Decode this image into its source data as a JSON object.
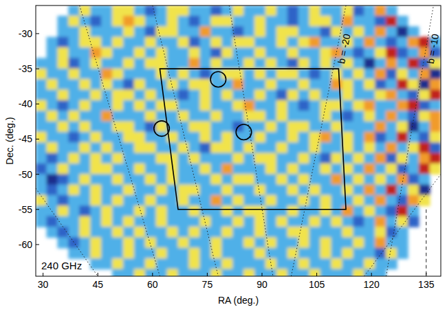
{
  "chart_data": {
    "type": "heatmap",
    "x_label": "RA (deg.)",
    "y_label": "Dec. (deg.)",
    "annotation": "240 GHz",
    "xlim": [
      28,
      139
    ],
    "ylim": [
      -64.5,
      -26
    ],
    "xticks": [
      30,
      45,
      60,
      75,
      90,
      105,
      120,
      135
    ],
    "yticks": [
      -30,
      -35,
      -40,
      -45,
      -50,
      -55,
      -60
    ],
    "color_range": [
      -3,
      3
    ],
    "cell_ra": [
      29.5,
      32.5,
      35.5,
      38.5,
      41.5,
      44.5,
      47.5,
      50.5,
      53.5,
      56.5,
      59.5,
      62.5,
      65.5,
      68.5,
      71.5,
      74.5,
      77.5,
      80.5,
      83.5,
      86.5,
      89.5,
      92.5,
      95.5,
      98.5,
      101.5,
      104.5,
      107.5,
      110.5,
      113.5,
      116.5,
      119.5,
      122.5,
      125.5,
      128.5,
      131.5,
      134.5,
      137.5
    ],
    "cell_dec": [
      -26.75,
      -28.25,
      -29.75,
      -31.25,
      -32.75,
      -34.25,
      -35.75,
      -37.25,
      -38.75,
      -40.25,
      -41.75,
      -43.25,
      -44.75,
      -46.25,
      -47.75,
      -49.25,
      -50.75,
      -52.25,
      -53.75,
      -55.25,
      -56.75,
      -58.25,
      -59.75,
      -61.25,
      -62.75,
      -64.25
    ],
    "cells": [
      [
        null,
        null,
        null,
        -1,
        1,
        -1,
        -1,
        1,
        1,
        -1,
        -2,
        -1,
        1,
        1,
        -1,
        -1,
        -2,
        -1,
        1,
        -1,
        -1,
        1,
        -1,
        -2,
        -1,
        1,
        -1,
        -1,
        1,
        -2,
        -1,
        2,
        -1,
        null,
        null,
        null,
        null
      ],
      [
        null,
        null,
        -1,
        1,
        -1,
        -2,
        -1,
        1,
        2,
        1,
        -1,
        -1,
        1,
        -1,
        -2,
        -1,
        1,
        1,
        -1,
        -1,
        1,
        -1,
        -1,
        -2,
        -1,
        1,
        1,
        -1,
        2,
        -1,
        -1,
        -2,
        3,
        -1,
        null,
        null,
        null
      ],
      [
        null,
        null,
        -1,
        -1,
        1,
        -1,
        -1,
        -1,
        1,
        -1,
        -2,
        1,
        1,
        -1,
        -1,
        2,
        -1,
        -1,
        -2,
        -1,
        1,
        -1,
        1,
        1,
        -1,
        -1,
        -2,
        1,
        -1,
        1,
        -1,
        2,
        -1,
        -3,
        -1,
        null,
        null
      ],
      [
        null,
        -1,
        -2,
        -1,
        1,
        1,
        -1,
        1,
        -1,
        -1,
        1,
        -1,
        -1,
        1,
        -2,
        -1,
        1,
        -1,
        1,
        1,
        -1,
        -1,
        1,
        -1,
        1,
        2,
        -1,
        -1,
        1,
        -1,
        2,
        -1,
        -2,
        -1,
        2,
        3,
        -1
      ],
      [
        null,
        -1,
        1,
        -1,
        -1,
        2,
        1,
        -1,
        -1,
        1,
        -1,
        1,
        -1,
        -1,
        1,
        -1,
        -2,
        1,
        -1,
        -1,
        1,
        -1,
        -1,
        1,
        -1,
        -1,
        1,
        2,
        -1,
        -2,
        -1,
        1,
        3,
        -2,
        -1,
        2,
        -2
      ],
      [
        -1,
        -1,
        1,
        -2,
        -1,
        1,
        -1,
        -1,
        1,
        -1,
        1,
        1,
        -1,
        -1,
        2,
        -1,
        1,
        -1,
        -1,
        1,
        -1,
        1,
        -1,
        -2,
        1,
        -1,
        1,
        -1,
        1,
        -1,
        -3,
        -1,
        2,
        -1,
        3,
        -2,
        1
      ],
      [
        1,
        -1,
        -1,
        1,
        -1,
        -1,
        2,
        1,
        -1,
        -1,
        -1,
        1,
        -1,
        1,
        -1,
        -2,
        -1,
        1,
        1,
        -1,
        1,
        -1,
        1,
        1,
        -1,
        -2,
        -1,
        1,
        -1,
        1,
        -1,
        2,
        -2,
        1,
        -1,
        2,
        -3
      ],
      [
        -1,
        1,
        -1,
        -1,
        1,
        -1,
        1,
        -1,
        -2,
        1,
        -1,
        -1,
        1,
        -1,
        1,
        1,
        -1,
        -1,
        2,
        -1,
        -1,
        1,
        -1,
        -1,
        1,
        -1,
        -1,
        2,
        1,
        -1,
        1,
        -2,
        -1,
        3,
        1,
        -3,
        2
      ],
      [
        -1,
        -1,
        1,
        -1,
        -1,
        1,
        -1,
        1,
        1,
        -1,
        1,
        -1,
        -1,
        -2,
        -1,
        1,
        -1,
        1,
        -1,
        -1,
        1,
        -1,
        -2,
        1,
        -1,
        1,
        -1,
        -1,
        1,
        -1,
        -1,
        1,
        2,
        -1,
        -2,
        1,
        3
      ],
      [
        1,
        -1,
        -2,
        -1,
        1,
        -1,
        -1,
        1,
        -1,
        1,
        -1,
        1,
        1,
        -1,
        -1,
        1,
        -1,
        -1,
        1,
        2,
        -1,
        -1,
        1,
        -1,
        -2,
        -1,
        1,
        1,
        -1,
        1,
        2,
        -1,
        -1,
        2,
        3,
        -2,
        -1
      ],
      [
        -1,
        1,
        -1,
        1,
        -1,
        -1,
        2,
        -1,
        -1,
        -1,
        1,
        -1,
        -1,
        1,
        -1,
        -1,
        1,
        -1,
        -1,
        1,
        1,
        -1,
        1,
        -1,
        -1,
        -1,
        1,
        -1,
        -2,
        -1,
        1,
        -1,
        2,
        -1,
        -2,
        1,
        2
      ],
      [
        -1,
        -1,
        1,
        -1,
        1,
        -1,
        -1,
        1,
        1,
        -1,
        -2,
        1,
        -1,
        -1,
        1,
        1,
        -1,
        -1,
        -2,
        -1,
        -1,
        1,
        -1,
        1,
        1,
        -1,
        -1,
        1,
        -1,
        -1,
        -1,
        2,
        -1,
        1,
        -3,
        -1,
        2
      ],
      [
        1,
        -1,
        -1,
        -2,
        -1,
        1,
        -1,
        -1,
        1,
        1,
        -1,
        -1,
        1,
        -1,
        -1,
        1,
        -1,
        1,
        -1,
        -1,
        1,
        -1,
        -1,
        1,
        -1,
        1,
        2,
        -1,
        1,
        -1,
        2,
        -2,
        -1,
        3,
        -1,
        -2,
        1
      ],
      [
        -1,
        1,
        -1,
        -1,
        1,
        -1,
        1,
        -1,
        -1,
        1,
        1,
        -1,
        -1,
        1,
        -1,
        -2,
        1,
        1,
        -1,
        1,
        -1,
        -1,
        1,
        -1,
        -1,
        1,
        -1,
        -1,
        1,
        -1,
        1,
        -1,
        2,
        -1,
        1,
        3,
        -2
      ],
      [
        -1,
        -2,
        -1,
        1,
        -1,
        1,
        -1,
        1,
        -1,
        -1,
        -1,
        1,
        1,
        -1,
        1,
        -1,
        -1,
        -1,
        1,
        -1,
        1,
        1,
        -1,
        -1,
        1,
        -1,
        -2,
        1,
        -1,
        1,
        -1,
        2,
        -2,
        1,
        -1,
        2,
        3
      ],
      [
        -2,
        -1,
        1,
        -1,
        -1,
        1,
        1,
        -1,
        -1,
        1,
        -1,
        -1,
        1,
        -1,
        -1,
        1,
        -1,
        2,
        -1,
        -1,
        -1,
        1,
        -1,
        1,
        -1,
        -1,
        1,
        -1,
        1,
        -1,
        2,
        -1,
        1,
        -2,
        -1,
        3,
        1
      ],
      [
        -1,
        -3,
        -2,
        -1,
        1,
        -1,
        -1,
        1,
        -1,
        -1,
        1,
        -1,
        1,
        -1,
        -1,
        -1,
        1,
        -1,
        1,
        1,
        -1,
        -1,
        1,
        -1,
        1,
        -1,
        -1,
        2,
        -1,
        1,
        -1,
        1,
        -1,
        2,
        -2,
        -1,
        null
      ],
      [
        -1,
        -2,
        -1,
        1,
        -1,
        1,
        -1,
        -1,
        1,
        -1,
        -1,
        1,
        -1,
        1,
        1,
        -1,
        -1,
        1,
        -1,
        -1,
        1,
        -1,
        -1,
        1,
        -1,
        1,
        -1,
        -1,
        1,
        -1,
        2,
        -1,
        3,
        -1,
        1,
        -3,
        null
      ],
      [
        1,
        -1,
        -2,
        -1,
        -1,
        1,
        -1,
        1,
        -1,
        -1,
        1,
        -1,
        -1,
        1,
        -1,
        -1,
        2,
        -1,
        1,
        -1,
        -1,
        1,
        -1,
        -1,
        1,
        -1,
        1,
        -1,
        -1,
        1,
        -1,
        2,
        -1,
        -2,
        2,
        1,
        null
      ],
      [
        -1,
        -1,
        1,
        -1,
        -2,
        -1,
        1,
        -1,
        -1,
        1,
        -1,
        1,
        -1,
        -1,
        1,
        -1,
        -1,
        1,
        -1,
        1,
        1,
        -1,
        -1,
        1,
        -1,
        -1,
        1,
        -1,
        2,
        -1,
        1,
        -1,
        -2,
        3,
        -1,
        null,
        null
      ],
      [
        -1,
        -2,
        -1,
        -1,
        1,
        -1,
        1,
        -1,
        1,
        -1,
        -1,
        1,
        -1,
        -1,
        -1,
        1,
        -1,
        -1,
        1,
        -1,
        1,
        -1,
        1,
        -1,
        -1,
        1,
        -1,
        1,
        -1,
        -2,
        -1,
        2,
        -1,
        1,
        -2,
        null,
        null
      ],
      [
        null,
        -1,
        -2,
        -1,
        1,
        -1,
        -1,
        1,
        -1,
        1,
        -1,
        -1,
        1,
        -1,
        1,
        -1,
        -1,
        1,
        -1,
        -1,
        1,
        -1,
        -1,
        1,
        1,
        -1,
        -1,
        -1,
        1,
        -1,
        -1,
        1,
        -2,
        -1,
        null,
        null,
        null
      ],
      [
        null,
        null,
        -1,
        -2,
        -1,
        1,
        -1,
        -1,
        1,
        -1,
        1,
        -1,
        -1,
        1,
        -1,
        -1,
        1,
        -1,
        -1,
        1,
        -1,
        1,
        -1,
        -1,
        1,
        -1,
        1,
        -1,
        -1,
        1,
        -1,
        2,
        -1,
        -1,
        null,
        null,
        null
      ],
      [
        null,
        null,
        null,
        -1,
        -1,
        1,
        -1,
        -1,
        1,
        -1,
        -1,
        1,
        -1,
        -1,
        1,
        -1,
        1,
        -1,
        -1,
        -1,
        1,
        -1,
        -1,
        1,
        -1,
        -1,
        1,
        -1,
        1,
        -1,
        -1,
        -2,
        1,
        -1,
        null,
        null,
        null
      ],
      [
        null,
        null,
        null,
        null,
        null,
        -1,
        -1,
        1,
        -1,
        -1,
        1,
        -1,
        -1,
        -1,
        1,
        -1,
        -1,
        1,
        -1,
        -1,
        -1,
        1,
        -1,
        -1,
        1,
        -1,
        -1,
        1,
        -1,
        -1,
        1,
        -1,
        -1,
        null,
        null,
        null,
        null
      ],
      [
        null,
        null,
        null,
        null,
        null,
        null,
        null,
        -1,
        -1,
        1,
        -1,
        -1,
        1,
        -1,
        -1,
        -1,
        1,
        -1,
        -1,
        1,
        -1,
        -1,
        1,
        -1,
        -1,
        1,
        -1,
        -1,
        -1,
        1,
        -1,
        -1,
        null,
        null,
        null,
        null,
        null
      ]
    ],
    "field": {
      "ra": [
        62,
        111,
        113,
        67
      ],
      "dec": [
        -35,
        -35,
        -55,
        -55
      ]
    },
    "circles": {
      "ra": [
        78,
        62.5,
        85
      ],
      "dec": [
        -36.5,
        -43.5,
        -44
      ],
      "radius": 1.1
    },
    "overlay_lines": [
      {
        "ra": [
          40,
          62
        ],
        "dec": [
          -26,
          -64.5
        ],
        "line_style": "dotted"
      },
      {
        "ra": [
          60,
          78
        ],
        "dec": [
          -26,
          -64.5
        ],
        "line_style": "dotted"
      },
      {
        "ra": [
          81,
          93
        ],
        "dec": [
          -26,
          -64.5
        ],
        "line_style": "dotted"
      },
      {
        "ra": [
          98,
          113
        ],
        "dec": [
          -64.5,
          -26
        ],
        "line_style": "dotted",
        "label": "b = -20"
      },
      {
        "ra": [
          124,
          137
        ],
        "dec": [
          -64.5,
          -26
        ],
        "line_style": "dotted",
        "label": "b = -10"
      },
      {
        "ra": [
          28,
          45
        ],
        "dec": [
          -52,
          -64.5
        ],
        "line_style": "dotted"
      },
      {
        "ra": [
          118,
          139
        ],
        "dec": [
          -64.5,
          -50
        ],
        "line_style": "dotted"
      },
      {
        "ra": [
          135,
          135
        ],
        "dec": [
          -55,
          -64.5
        ],
        "line_style": "dashed"
      }
    ]
  }
}
